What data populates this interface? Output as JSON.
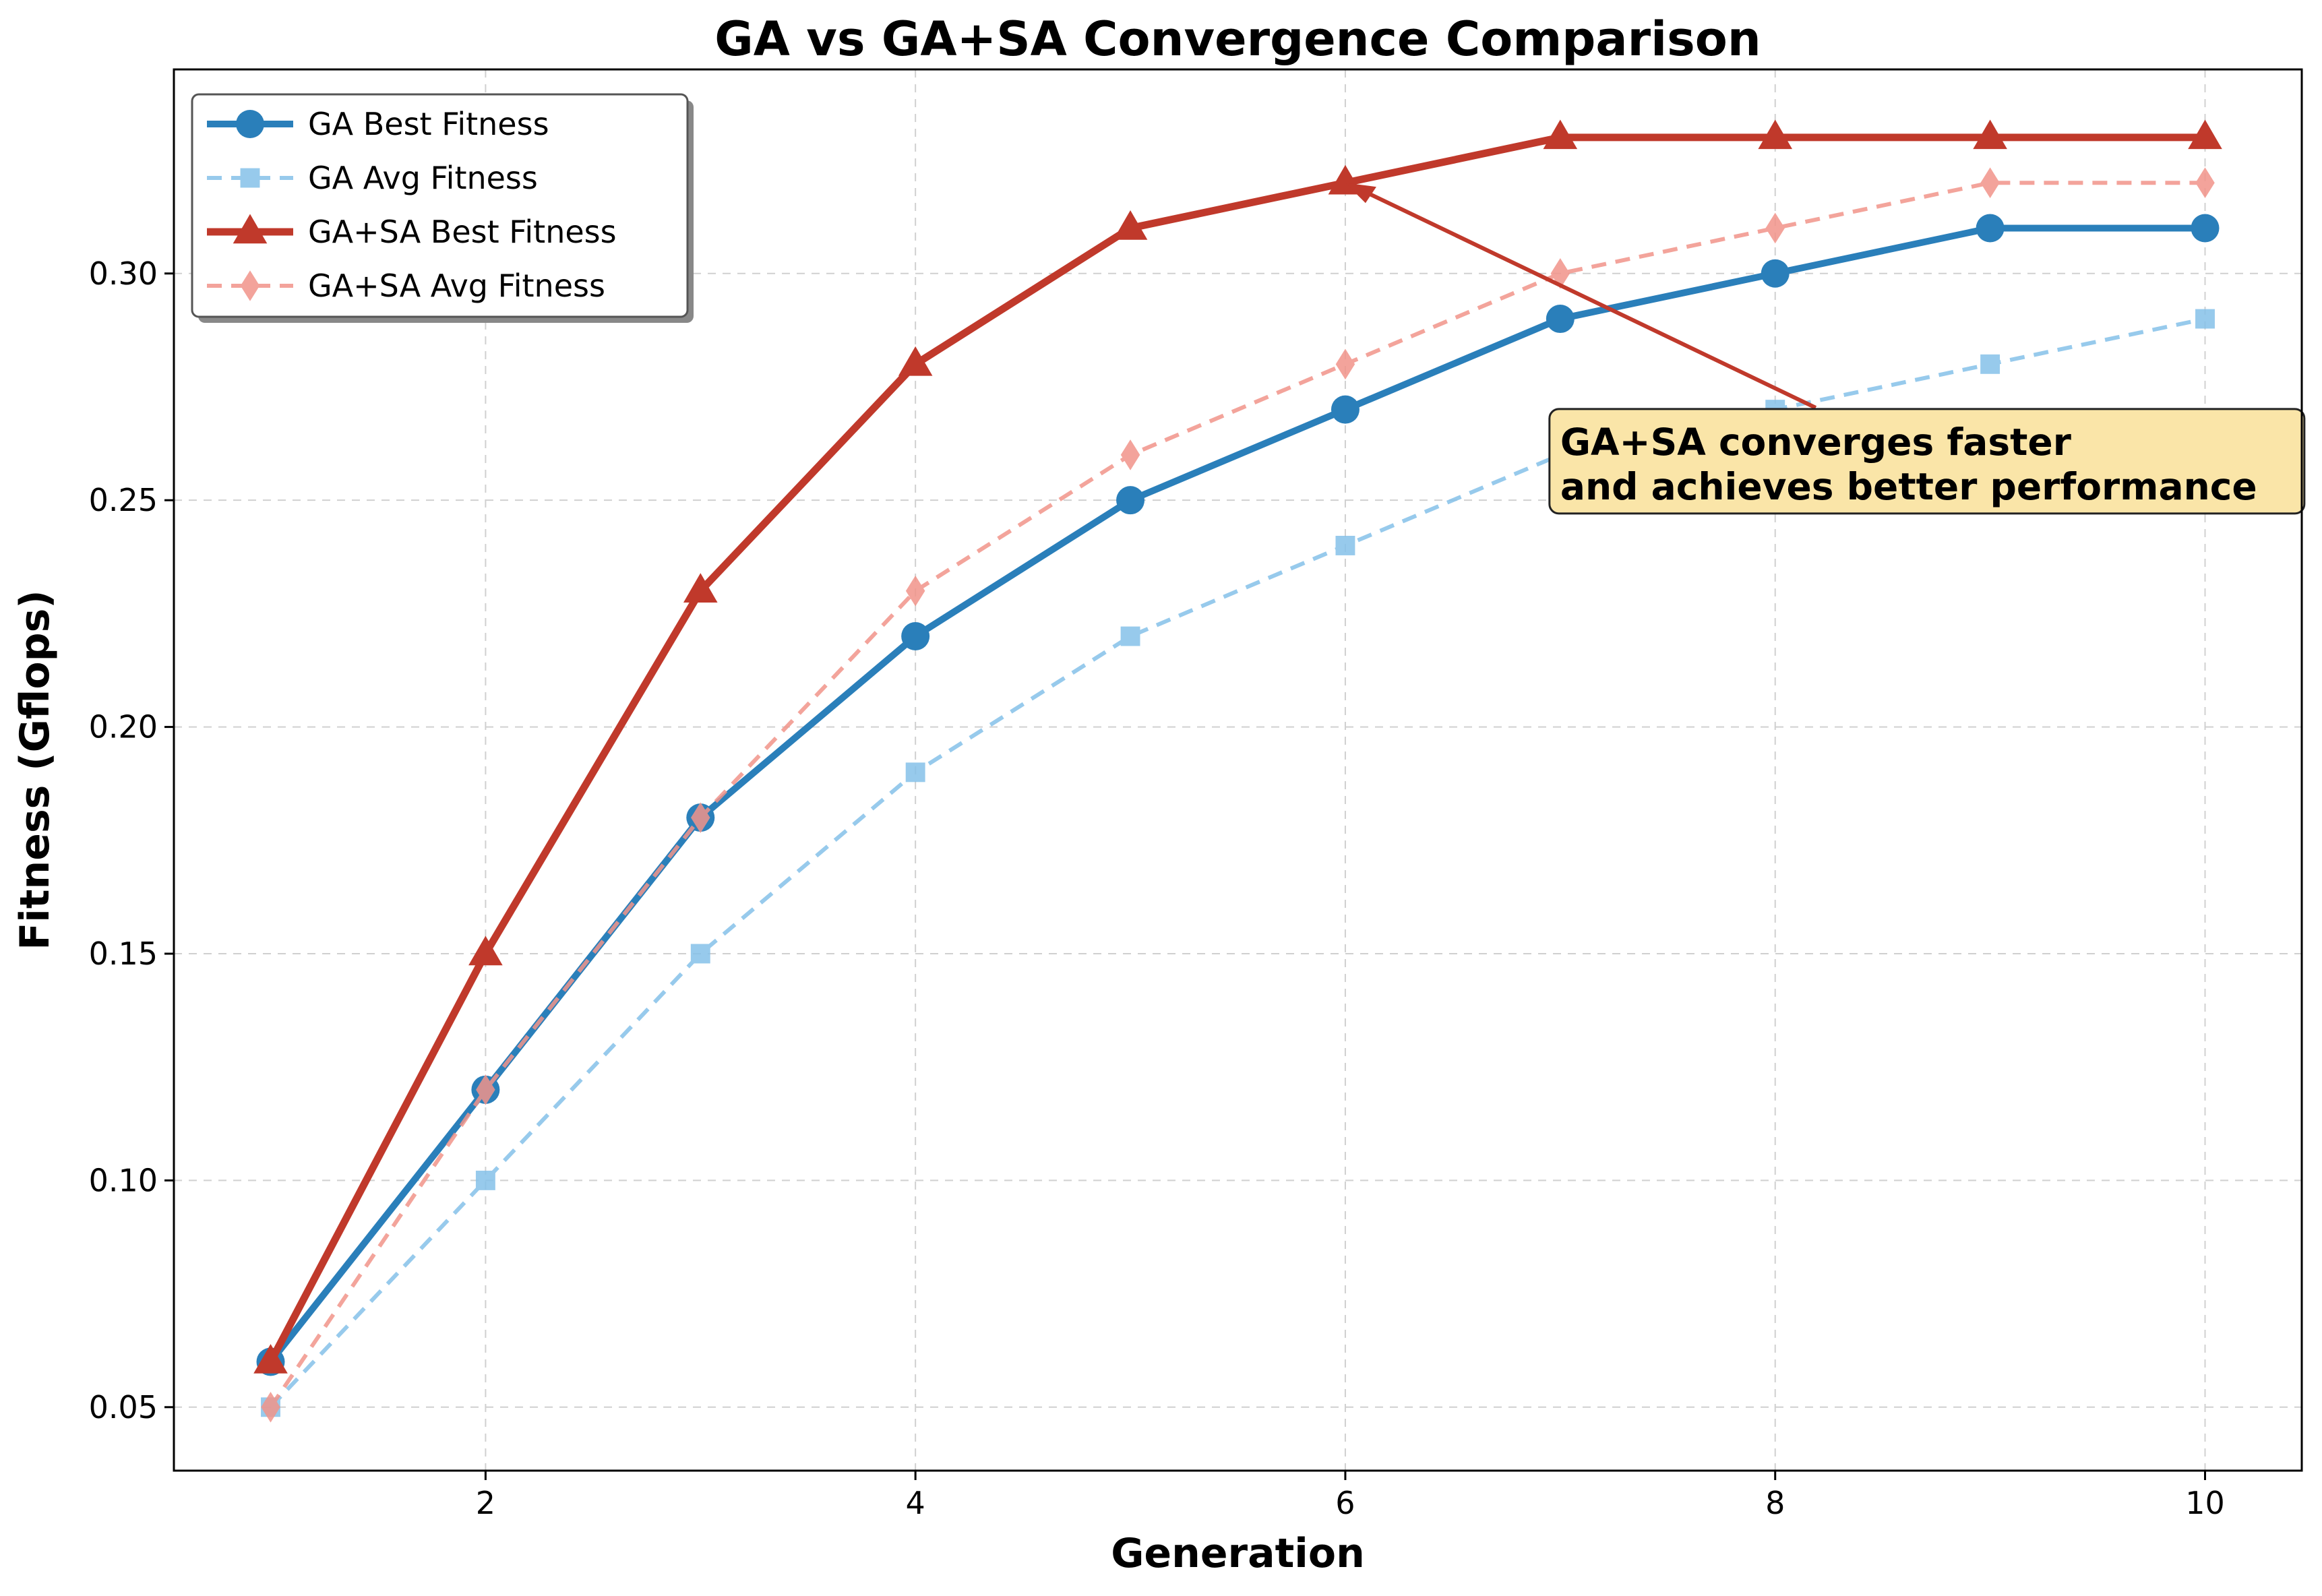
{
  "chart_data": {
    "type": "line",
    "title": "GA vs GA+SA Convergence Comparison",
    "xlabel": "Generation",
    "ylabel": "Fitness (Gflops)",
    "x": [
      1,
      2,
      3,
      4,
      5,
      6,
      7,
      8,
      9,
      10
    ],
    "xlim": [
      0.55,
      10.45
    ],
    "ylim": [
      0.036,
      0.345
    ],
    "xticks": [
      2,
      4,
      6,
      8,
      10
    ],
    "xtick_labels": [
      "2",
      "4",
      "6",
      "8",
      "10"
    ],
    "yticks": [
      0.05,
      0.1,
      0.15,
      0.2,
      0.25,
      0.3
    ],
    "ytick_labels": [
      "0.05",
      "0.10",
      "0.15",
      "0.20",
      "0.25",
      "0.30"
    ],
    "grid": true,
    "legend_position": "top-left",
    "series": [
      {
        "name": "GA Best Fitness",
        "color": "#2a7fba",
        "marker": "circle",
        "dashed": false,
        "values": [
          0.06,
          0.12,
          0.18,
          0.22,
          0.25,
          0.27,
          0.29,
          0.3,
          0.31,
          0.31
        ]
      },
      {
        "name": "GA Avg Fitness",
        "color": "#85c1e9",
        "marker": "square",
        "dashed": true,
        "values": [
          0.05,
          0.1,
          0.15,
          0.19,
          0.22,
          0.24,
          0.26,
          0.27,
          0.28,
          0.29
        ]
      },
      {
        "name": "GA+SA Best Fitness",
        "color": "#c0392b",
        "marker": "triangle",
        "dashed": false,
        "values": [
          0.06,
          0.15,
          0.23,
          0.28,
          0.31,
          0.32,
          0.33,
          0.33,
          0.33,
          0.33
        ]
      },
      {
        "name": "GA+SA Avg Fitness",
        "color": "#f1948a",
        "marker": "diamond",
        "dashed": true,
        "values": [
          0.05,
          0.12,
          0.18,
          0.23,
          0.26,
          0.28,
          0.3,
          0.31,
          0.32,
          0.32
        ]
      }
    ],
    "annotation": {
      "lines": [
        "GA+SA converges faster",
        "and achieves better performance"
      ],
      "points_to": {
        "x": 6,
        "y": 0.32
      },
      "text_anchor": {
        "x": 7,
        "y": 0.26
      },
      "box_color": "#fae5a8",
      "arrow_color": "#c0392b"
    }
  }
}
